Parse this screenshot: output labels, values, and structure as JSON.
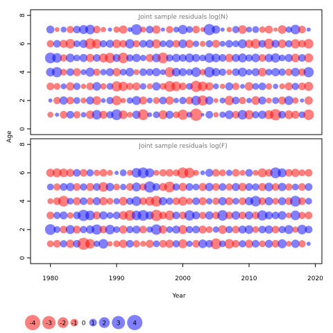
{
  "chart_data": {
    "type": "bubble-residuals",
    "xlabel": "Year",
    "ylabel": "Age",
    "xlim": [
      1977,
      2021
    ],
    "x_ticks": [
      1980,
      1990,
      2000,
      2010,
      2020
    ],
    "y_ticks": [
      0,
      2,
      4,
      6,
      8
    ],
    "ylim": [
      -0.4,
      8.4
    ],
    "years": [
      1980,
      1981,
      1982,
      1983,
      1984,
      1985,
      1986,
      1987,
      1988,
      1989,
      1990,
      1991,
      1992,
      1993,
      1994,
      1995,
      1996,
      1997,
      1998,
      1999,
      2000,
      2001,
      2002,
      2003,
      2004,
      2005,
      2006,
      2007,
      2008,
      2009,
      2010,
      2011,
      2012,
      2013,
      2014,
      2015,
      2016,
      2017,
      2018,
      2019
    ],
    "colors": {
      "negative": "#ff0000",
      "positive": "#0000ff"
    },
    "panels": [
      {
        "title": "Joint sample residuals log(N)",
        "ages": [
          1,
          2,
          3,
          4,
          5,
          6,
          7
        ],
        "residuals": [
          [
            -0.6,
            0.3,
            -1.0,
            1.0,
            -0.9,
            0.5,
            -1.2,
            1.6,
            -1.1,
            0.9,
            2.0,
            -1.3,
            -0.6,
            1.2,
            -2.0,
            0.4,
            0.8,
            -1.4,
            1.1,
            -0.8,
            -1.8,
            0.6,
            -2.6,
            0.2,
            1.0,
            -0.5,
            0.7,
            1.3,
            -1.0,
            1.6,
            -1.5,
            0.9,
            1.2,
            -1.4,
            -2.2,
            1.0,
            -1.3,
            -1.1,
            0.8,
            -1.9
          ],
          [
            0.3,
            -0.9,
            1.2,
            -1.0,
            0.8,
            -0.6,
            1.1,
            -1.3,
            0.4,
            0.9,
            -1.6,
            -0.5,
            0.7,
            1.4,
            -1.1,
            0.6,
            -0.8,
            1.0,
            -1.2,
            0.5,
            0.9,
            -1.0,
            1.6,
            -1.8,
            1.2,
            -0.4,
            0.6,
            -1.5,
            1.0,
            -0.9,
            0.5,
            -1.3,
            1.1,
            -0.6,
            0.8,
            -1.1,
            1.4,
            -0.7,
            0.3,
            -1.2
          ],
          [
            -1.0,
            -0.8,
            0.6,
            -1.2,
            0.9,
            -0.5,
            -1.0,
            1.3,
            -0.7,
            0.8,
            -1.8,
            -1.5,
            -0.9,
            -1.1,
            0.7,
            -0.6,
            1.2,
            -0.8,
            -2.0,
            -1.6,
            -1.0,
            0.8,
            -2.2,
            -1.6,
            -1.2,
            0.6,
            -0.5,
            1.1,
            -0.9,
            0.4,
            -1.3,
            0.8,
            1.0,
            -0.7,
            0.5,
            -0.6,
            -1.1,
            0.9,
            -1.0,
            -1.4
          ],
          [
            1.3,
            1.8,
            -0.8,
            1.0,
            -1.1,
            0.6,
            1.4,
            -0.9,
            0.7,
            1.1,
            -1.2,
            0.8,
            1.3,
            -0.6,
            1.0,
            0.9,
            1.2,
            0.6,
            -1.7,
            1.3,
            1.1,
            0.8,
            1.6,
            -0.7,
            1.9,
            1.2,
            0.9,
            -0.6,
            1.0,
            1.4,
            0.7,
            1.1,
            -1.3,
            0.8,
            1.2,
            0.9,
            -0.9,
            1.3,
            -1.0,
            1.8
          ],
          [
            2.0,
            1.6,
            -0.9,
            1.3,
            0.8,
            1.1,
            -1.2,
            1.0,
            -1.4,
            -1.8,
            1.1,
            -1.9,
            0.9,
            1.2,
            0.7,
            -1.1,
            1.3,
            -2.0,
            0.9,
            1.2,
            1.0,
            1.4,
            1.1,
            0.8,
            1.6,
            1.3,
            1.0,
            -1.2,
            1.1,
            1.4,
            0.9,
            1.3,
            -1.0,
            1.2,
            1.5,
            0.8,
            1.1,
            -1.3,
            1.0,
            -1.4
          ],
          [
            -0.9,
            1.0,
            -1.1,
            -1.6,
            0.8,
            1.2,
            -2.0,
            -1.5,
            0.9,
            1.1,
            -1.3,
            -1.0,
            1.5,
            -0.9,
            1.0,
            1.2,
            -1.4,
            0.8,
            1.1,
            -1.0,
            1.3,
            -1.2,
            0.7,
            -0.6,
            0.9,
            -1.1,
            0.6,
            1.0,
            0.8,
            1.4,
            -1.2,
            -1.6,
            1.0,
            -1.8,
            1.1,
            -1.3,
            0.9,
            -1.5,
            -1.0,
            -1.6
          ],
          [
            1.1,
            -0.4,
            0.6,
            -0.9,
            1.0,
            1.4,
            1.6,
            -1.0,
            -0.5,
            0.3,
            -0.7,
            -1.2,
            0.4,
            2.0,
            -0.6,
            1.0,
            -1.2,
            0.3,
            -0.9,
            0.6,
            1.5,
            0.8,
            -1.0,
            -0.4,
            2.2,
            1.2,
            0.3,
            -0.5,
            0.9,
            -1.3,
            0.6,
            0.8,
            -0.7,
            -1.1,
            -0.3,
            -1.3,
            0.7,
            1.6,
            -1.0,
            0.3
          ]
        ]
      },
      {
        "title": "Joint sample residuals log(F)",
        "ages": [
          1,
          2,
          3,
          4,
          5,
          6
        ],
        "residuals": [
          [
            -0.8,
            -1.0,
            0.9,
            -1.2,
            1.0,
            -2.5,
            -1.6,
            0.7,
            1.6,
            -0.5,
            -0.8,
            -1.2,
            1.0,
            -0.9,
            -0.6,
            -1.1,
            0.8,
            -1.0,
            -1.2,
            0.9,
            -1.4,
            0.7,
            -1.0,
            1.3,
            1.0,
            -2.0,
            0.8,
            -1.6,
            -1.0,
            0.9,
            -1.2,
            1.0,
            -0.8,
            1.1,
            -1.0,
            1.4,
            -0.6,
            1.2,
            -0.9,
            0.3
          ],
          [
            2.0,
            0.8,
            -1.0,
            1.4,
            -1.1,
            0.9,
            1.2,
            1.8,
            -1.0,
            1.6,
            0.8,
            -1.2,
            0.9,
            1.1,
            -1.0,
            0.7,
            1.9,
            -1.2,
            0.8,
            1.1,
            -1.4,
            0.9,
            1.0,
            -1.1,
            -0.8,
            0.7,
            -1.3,
            0.9,
            -1.0,
            1.1,
            1.3,
            -0.8,
            1.0,
            1.2,
            -1.0,
            0.9,
            1.4,
            -0.7,
            1.6,
            1.0
          ],
          [
            -1.0,
            0.9,
            1.1,
            -0.7,
            1.0,
            2.2,
            1.6,
            -1.1,
            1.2,
            0.8,
            1.0,
            -1.3,
            -1.9,
            1.6,
            2.0,
            1.2,
            -2.2,
            -1.0,
            -1.6,
            1.0,
            -1.0,
            1.8,
            1.1,
            -0.9,
            1.2,
            -1.0,
            1.9,
            -1.0,
            1.3,
            -1.0,
            1.2,
            -1.0,
            1.8,
            1.1,
            1.0,
            1.3,
            -0.6,
            1.6,
            -0.9,
            -1.0
          ],
          [
            -0.6,
            -1.0,
            -2.0,
            0.8,
            -1.1,
            1.0,
            -0.9,
            1.1,
            -1.2,
            -0.8,
            0.7,
            -1.3,
            0.9,
            1.6,
            -1.0,
            -1.4,
            -2.0,
            1.2,
            0.9,
            -1.0,
            -1.4,
            -0.8,
            1.0,
            -1.1,
            0.7,
            -0.9,
            1.2,
            -1.1,
            0.8,
            -1.0,
            1.2,
            1.9,
            -1.0,
            1.2,
            -0.8,
            1.1,
            -1.0,
            2.0,
            -1.0,
            0.8
          ],
          [
            0.8,
            -0.9,
            1.0,
            1.2,
            -1.0,
            0.9,
            -1.1,
            1.0,
            -1.6,
            1.2,
            -0.8,
            0.7,
            -1.0,
            1.4,
            -0.9,
            2.2,
            1.0,
            -1.1,
            -2.0,
            0.9,
            -1.2,
            1.0,
            0.8,
            -1.1,
            1.2,
            -1.0,
            1.0,
            -0.9,
            1.1,
            -1.2,
            1.0,
            0.9,
            -1.1,
            1.3,
            -1.0,
            1.2,
            -0.9,
            0.8,
            -1.0,
            1.0
          ],
          [
            -1.2,
            -1.4,
            -1.3,
            -1.1,
            1.0,
            -1.0,
            0.9,
            -0.7,
            -1.0,
            -0.6,
            0.3,
            0.8,
            -0.6,
            1.6,
            2.0,
            1.4,
            -0.6,
            -0.9,
            -1.0,
            -0.8,
            -2.0,
            -1.8,
            -0.6,
            0.4,
            1.1,
            -1.0,
            -0.8,
            0.7,
            -1.0,
            -0.6,
            1.0,
            -0.6,
            -1.4,
            -1.0,
            2.0,
            1.4,
            -1.0,
            -1.2,
            -0.8,
            -1.0
          ]
        ]
      }
    ],
    "legend": {
      "values": [
        -4,
        -3,
        -2,
        -1,
        0,
        1,
        2,
        3,
        4
      ],
      "labels": [
        "-4",
        "-3",
        "-2",
        "-1",
        "0",
        "1",
        "2",
        "3",
        "4"
      ]
    }
  }
}
